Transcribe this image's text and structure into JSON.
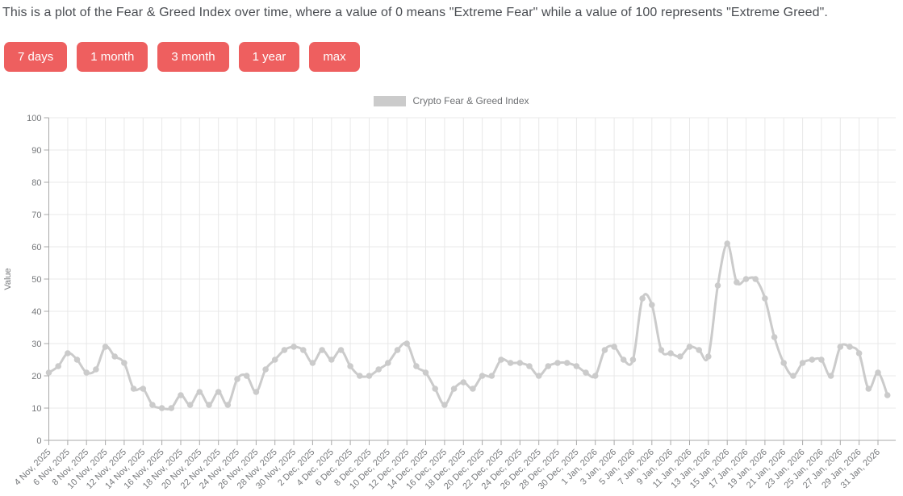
{
  "header": {
    "description": "This is a plot of the Fear & Greed Index over time, where a value of 0 means \"Extreme Fear\" while a value of 100 represents \"Extreme Greed\"."
  },
  "range_buttons": [
    "7 days",
    "1 month",
    "3 month",
    "1 year",
    "max"
  ],
  "colors": {
    "accent": "#ee5f5f",
    "accent_text": "#ffffff",
    "line": "#cbcbcb",
    "grid": "#e8e8e8",
    "axis": "#a8a8a8",
    "tick_label": "#77797c",
    "heading": "#4b4e53"
  },
  "chart_data": {
    "type": "line",
    "title": "",
    "legend_position": "top",
    "grid": true,
    "ylabel": "Value",
    "ylim": [
      0,
      100
    ],
    "y_ticks": [
      0,
      10,
      20,
      30,
      40,
      50,
      60,
      70,
      80,
      90,
      100
    ],
    "x_tick_labels": [
      "4 Nov, 2025",
      "6 Nov, 2025",
      "8 Nov, 2025",
      "10 Nov, 2025",
      "12 Nov, 2025",
      "14 Nov, 2025",
      "16 Nov, 2025",
      "18 Nov, 2025",
      "20 Nov, 2025",
      "22 Nov, 2025",
      "24 Nov, 2025",
      "26 Nov, 2025",
      "28 Nov, 2025",
      "30 Nov, 2025",
      "2 Dec, 2025",
      "4 Dec, 2025",
      "6 Dec, 2025",
      "8 Dec, 2025",
      "10 Dec, 2025",
      "12 Dec, 2025",
      "14 Dec, 2025",
      "16 Dec, 2025",
      "18 Dec, 2025",
      "20 Dec, 2025",
      "22 Dec, 2025",
      "24 Dec, 2025",
      "26 Dec, 2025",
      "28 Dec, 2025",
      "30 Dec, 2025",
      "1 Jan, 2026",
      "3 Jan, 2026",
      "5 Jan, 2026",
      "7 Jan, 2026",
      "9 Jan, 2026",
      "11 Jan, 2026",
      "13 Jan, 2026",
      "15 Jan, 2026",
      "17 Jan, 2026",
      "19 Jan, 2026",
      "21 Jan, 2026",
      "23 Jan, 2026",
      "25 Jan, 2026",
      "27 Jan, 2026",
      "29 Jan, 2026",
      "31 Jan, 2026"
    ],
    "series": [
      {
        "name": "Crypto Fear & Greed Index",
        "color": "#cbcbcb",
        "dates": [
          "4 Nov, 2025",
          "5 Nov, 2025",
          "6 Nov, 2025",
          "7 Nov, 2025",
          "8 Nov, 2025",
          "9 Nov, 2025",
          "10 Nov, 2025",
          "11 Nov, 2025",
          "12 Nov, 2025",
          "13 Nov, 2025",
          "14 Nov, 2025",
          "15 Nov, 2025",
          "16 Nov, 2025",
          "17 Nov, 2025",
          "18 Nov, 2025",
          "19 Nov, 2025",
          "20 Nov, 2025",
          "21 Nov, 2025",
          "22 Nov, 2025",
          "23 Nov, 2025",
          "24 Nov, 2025",
          "25 Nov, 2025",
          "26 Nov, 2025",
          "27 Nov, 2025",
          "28 Nov, 2025",
          "29 Nov, 2025",
          "30 Nov, 2025",
          "1 Dec, 2025",
          "2 Dec, 2025",
          "3 Dec, 2025",
          "4 Dec, 2025",
          "5 Dec, 2025",
          "6 Dec, 2025",
          "7 Dec, 2025",
          "8 Dec, 2025",
          "9 Dec, 2025",
          "10 Dec, 2025",
          "11 Dec, 2025",
          "12 Dec, 2025",
          "13 Dec, 2025",
          "14 Dec, 2025",
          "15 Dec, 2025",
          "16 Dec, 2025",
          "17 Dec, 2025",
          "18 Dec, 2025",
          "19 Dec, 2025",
          "20 Dec, 2025",
          "21 Dec, 2025",
          "22 Dec, 2025",
          "23 Dec, 2025",
          "24 Dec, 2025",
          "25 Dec, 2025",
          "26 Dec, 2025",
          "27 Dec, 2025",
          "28 Dec, 2025",
          "29 Dec, 2025",
          "30 Dec, 2025",
          "31 Dec, 2025",
          "1 Jan, 2026",
          "2 Jan, 2026",
          "3 Jan, 2026",
          "4 Jan, 2026",
          "5 Jan, 2026",
          "6 Jan, 2026",
          "7 Jan, 2026",
          "8 Jan, 2026",
          "9 Jan, 2026",
          "10 Jan, 2026",
          "11 Jan, 2026",
          "12 Jan, 2026",
          "13 Jan, 2026",
          "14 Jan, 2026",
          "15 Jan, 2026",
          "16 Jan, 2026",
          "17 Jan, 2026",
          "18 Jan, 2026",
          "19 Jan, 2026",
          "20 Jan, 2026",
          "21 Jan, 2026",
          "22 Jan, 2026",
          "23 Jan, 2026",
          "24 Jan, 2026",
          "25 Jan, 2026",
          "26 Jan, 2026",
          "27 Jan, 2026",
          "28 Jan, 2026",
          "29 Jan, 2026",
          "30 Jan, 2026",
          "31 Jan, 2026",
          "1 Feb, 2026"
        ],
        "values": [
          21,
          23,
          27,
          25,
          21,
          22,
          29,
          26,
          24,
          16,
          16,
          11,
          10,
          10,
          14,
          11,
          15,
          11,
          15,
          11,
          19,
          20,
          15,
          22,
          25,
          28,
          29,
          28,
          24,
          28,
          25,
          28,
          23,
          20,
          20,
          22,
          24,
          28,
          30,
          23,
          21,
          16,
          11,
          16,
          18,
          16,
          20,
          20,
          25,
          24,
          24,
          23,
          20,
          23,
          24,
          24,
          23,
          21,
          20,
          28,
          29,
          25,
          25,
          44,
          42,
          28,
          27,
          26,
          29,
          28,
          26,
          48,
          61,
          49,
          50,
          50,
          44,
          32,
          24,
          20,
          24,
          25,
          25,
          20,
          29,
          29,
          27,
          16,
          21,
          14
        ]
      }
    ]
  }
}
